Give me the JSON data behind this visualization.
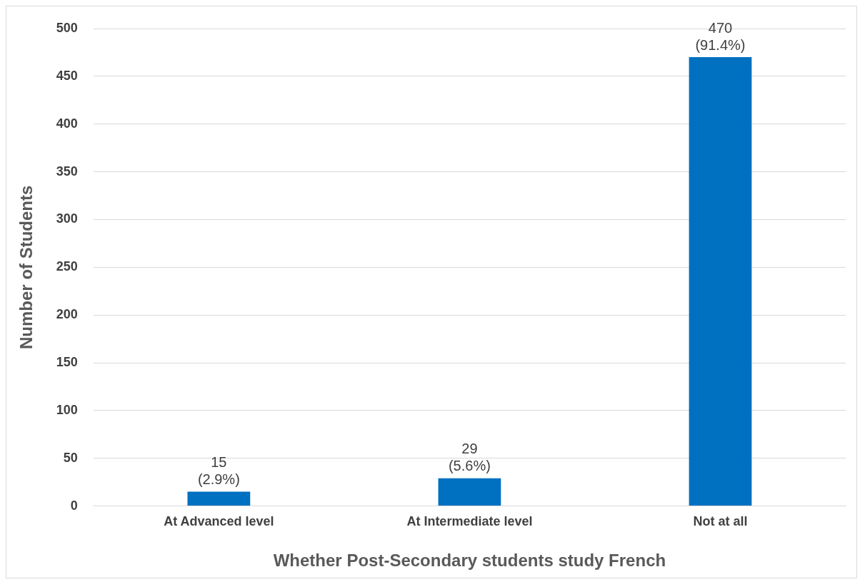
{
  "chart_data": {
    "type": "bar",
    "xlabel": "Whether Post-Secondary students study French",
    "ylabel": "Number of Students",
    "categories": [
      "At Advanced level",
      "At Intermediate level",
      "Not at all"
    ],
    "values": [
      15,
      29,
      470
    ],
    "color": "#0070c0",
    "value_labels": [
      "15\n(2.9%)",
      "29\n(5.6%)",
      "470\n(91.4%)"
    ],
    "ylim": [
      0,
      500
    ],
    "yticks": [
      0,
      50,
      100,
      150,
      200,
      250,
      300,
      350,
      400,
      450,
      500
    ],
    "grid": "y",
    "legend": false
  }
}
